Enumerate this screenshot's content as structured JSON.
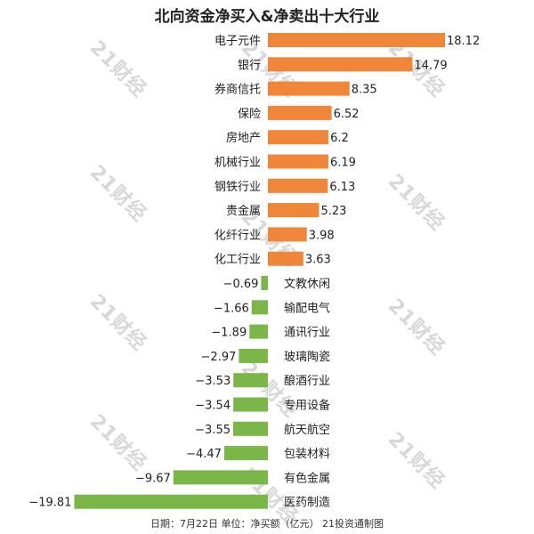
{
  "chart_data": {
    "type": "bar",
    "orientation": "horizontal",
    "title": "北向资金净买入&净卖出十大行业",
    "footer": "日期：7月22日 单位：净买额（亿元） 21投资通制图",
    "watermark": "21财经",
    "categories": [
      "电子元件",
      "银行",
      "券商信托",
      "保险",
      "房地产",
      "机械行业",
      "钢铁行业",
      "贵金属",
      "化纤行业",
      "化工行业",
      "文教休闲",
      "输配电气",
      "通讯行业",
      "玻璃陶瓷",
      "酿酒行业",
      "专用设备",
      "航天航空",
      "包装材料",
      "有色金属",
      "医药制造"
    ],
    "values": [
      18.12,
      14.79,
      8.35,
      6.52,
      6.2,
      6.19,
      6.13,
      5.23,
      3.98,
      3.63,
      -0.69,
      -1.66,
      -1.89,
      -2.97,
      -3.53,
      -3.54,
      -3.55,
      -4.47,
      -9.67,
      -19.81
    ],
    "value_labels": [
      "18.12",
      "14.79",
      "8.35",
      "6.52",
      "6.2",
      "6.19",
      "6.13",
      "5.23",
      "3.98",
      "3.63",
      "−0.69",
      "−1.66",
      "−1.89",
      "−2.97",
      "−3.53",
      "−3.54",
      "−3.55",
      "−4.47",
      "−9.67",
      "−19.81"
    ],
    "colors": {
      "positive": "#f0863a",
      "negative": "#7ab648"
    },
    "xlim": [
      -19.81,
      18.12
    ],
    "grid": false,
    "legend": "none"
  }
}
